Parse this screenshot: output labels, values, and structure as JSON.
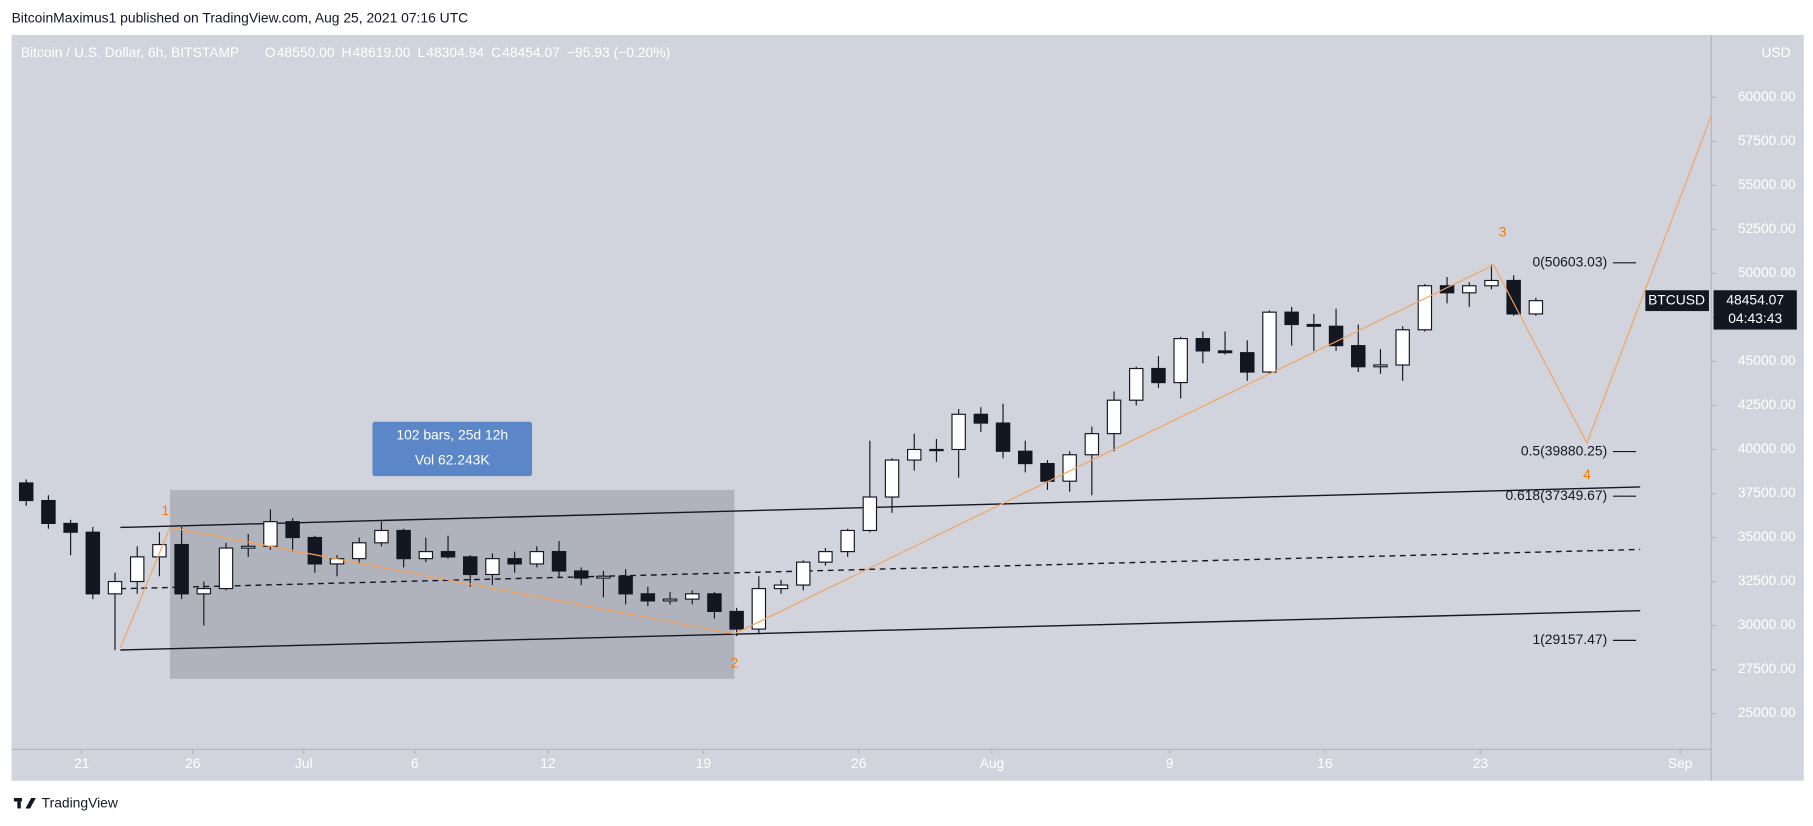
{
  "header": {
    "published": "BitcoinMaximus1 published on TradingView.com, Aug 25, 2021 07:16 UTC",
    "footer": "TradingView"
  },
  "chart_data": {
    "type": "candlestick",
    "symbol": "Bitcoin / U.S. Dollar, 6h, BITSTAMP",
    "ohlc": [
      {
        "key": "O",
        "value": "48550.00"
      },
      {
        "key": "H",
        "value": "48619.00"
      },
      {
        "key": "L",
        "value": "48304.94"
      },
      {
        "key": "C",
        "value": "48454.07"
      }
    ],
    "change": "−95.93 (−0.20%)",
    "currency": "USD",
    "ticker": "BTCUSD",
    "last_price": {
      "value": 48454.07,
      "label": "48454.07"
    },
    "countdown": "04:43:43",
    "open": [
      38100,
      37100,
      35800,
      35300,
      31800,
      32500,
      33900,
      34600,
      31800,
      32100,
      34400,
      34500,
      35900,
      35000,
      33500,
      33800,
      34700,
      35400,
      33800,
      34200,
      33900,
      32900,
      33800,
      33500,
      34200,
      33100,
      32700,
      32800,
      31800,
      31400,
      31500,
      31800,
      30800,
      29800,
      32100,
      32300,
      33600,
      34200,
      35400,
      37300,
      39400,
      40000,
      40000,
      42000,
      41500,
      39900,
      39200,
      38200,
      39700,
      40900,
      42800,
      44600,
      43800,
      46300,
      45600,
      45500,
      44400,
      47800,
      47100,
      47000,
      45900,
      44700,
      44800,
      46800,
      49300,
      48900,
      49300,
      49600,
      47700
    ],
    "high": [
      38300,
      37400,
      36000,
      35600,
      33000,
      34500,
      35300,
      35600,
      32500,
      34700,
      35200,
      36600,
      36100,
      35100,
      34000,
      35000,
      35900,
      35500,
      35000,
      35100,
      34000,
      34100,
      34200,
      34500,
      34800,
      33300,
      33100,
      33200,
      32200,
      31900,
      32000,
      31900,
      31000,
      32800,
      32600,
      33700,
      34400,
      35500,
      40500,
      39500,
      40900,
      40600,
      42300,
      42400,
      42600,
      40500,
      39400,
      39900,
      41300,
      43300,
      44700,
      45300,
      46400,
      46700,
      46700,
      46200,
      47900,
      48100,
      47700,
      48000,
      47100,
      45700,
      47000,
      49400,
      49800,
      49500,
      50500,
      49900,
      48619
    ],
    "low": [
      36800,
      35500,
      34000,
      31500,
      28600,
      31800,
      32800,
      31500,
      30000,
      32000,
      33900,
      34300,
      34200,
      33000,
      32800,
      33500,
      34500,
      33300,
      33600,
      33800,
      32200,
      32300,
      33000,
      33300,
      32700,
      32300,
      31600,
      31200,
      31100,
      31200,
      31200,
      30400,
      29400,
      29500,
      31800,
      32000,
      33400,
      33900,
      35300,
      36400,
      38800,
      39300,
      38400,
      41000,
      39500,
      38700,
      37700,
      37600,
      37400,
      39900,
      42500,
      43500,
      42900,
      44900,
      45400,
      43900,
      44300,
      45900,
      45600,
      45600,
      44400,
      44300,
      43900,
      46700,
      48300,
      48100,
      49100,
      47600,
      47600
    ],
    "close": [
      37100,
      35800,
      35300,
      31800,
      32500,
      33900,
      34600,
      31800,
      32100,
      34400,
      34500,
      35900,
      35000,
      33500,
      33800,
      34700,
      35400,
      33800,
      34200,
      33900,
      32900,
      33800,
      33500,
      34200,
      33100,
      32700,
      32800,
      31800,
      31400,
      31500,
      31800,
      30800,
      29800,
      32100,
      32300,
      33600,
      34200,
      35400,
      37300,
      39400,
      40000,
      40000,
      42000,
      41500,
      39900,
      39200,
      38200,
      39700,
      40900,
      42800,
      44600,
      43800,
      46300,
      45600,
      45500,
      44400,
      47800,
      47100,
      47000,
      45900,
      44700,
      44800,
      46800,
      49300,
      48900,
      49300,
      49600,
      47700,
      48454.07
    ],
    "xlim": [
      -0.16,
      76.4
    ],
    "xticks": [
      {
        "value": 3,
        "label": "21"
      },
      {
        "value": 8,
        "label": "26"
      },
      {
        "value": 13,
        "label": "Jul"
      },
      {
        "value": 18,
        "label": "6"
      },
      {
        "value": 24,
        "label": "12"
      },
      {
        "value": 31,
        "label": "19"
      },
      {
        "value": 38,
        "label": "26"
      },
      {
        "value": 44,
        "label": "Aug"
      },
      {
        "value": 52,
        "label": "9"
      },
      {
        "value": 59,
        "label": "16"
      },
      {
        "value": 66,
        "label": "23"
      },
      {
        "value": 75,
        "label": "Sep"
      }
    ],
    "ylim": [
      22960,
      63550
    ],
    "yticks": [
      {
        "value": 25000,
        "label": "25000.00"
      },
      {
        "value": 27500,
        "label": "27500.00"
      },
      {
        "value": 30000,
        "label": "30000.00"
      },
      {
        "value": 32500,
        "label": "32500.00"
      },
      {
        "value": 35000,
        "label": "35000.00"
      },
      {
        "value": 37500,
        "label": "37500.00"
      },
      {
        "value": 40000,
        "label": "40000.00"
      },
      {
        "value": 42500,
        "label": "42500.00"
      },
      {
        "value": 45000,
        "label": "45000.00"
      },
      {
        "value": 47500,
        "label": "47500.00"
      },
      {
        "value": 50000,
        "label": "50000.00"
      },
      {
        "value": 52500,
        "label": "52500.00"
      },
      {
        "value": 55000,
        "label": "55000.00"
      },
      {
        "value": 57500,
        "label": "57500.00"
      },
      {
        "value": 60000,
        "label": "60000.00"
      }
    ],
    "channel": [
      {
        "style": "solid",
        "x": [
          4.74,
          73.2
        ],
        "y": [
          35572,
          37870
        ]
      },
      {
        "style": "dashed",
        "x": [
          4.74,
          73.2
        ],
        "y": [
          32090,
          34322
        ]
      },
      {
        "style": "solid",
        "x": [
          4.74,
          73.2
        ],
        "y": [
          28610,
          30842
        ]
      }
    ],
    "wave_path": {
      "color": "#f7a35c",
      "x": [
        4.74,
        6.98,
        32.4,
        66.6,
        70.8,
        76.4
      ],
      "y": [
        28740,
        35572,
        29530,
        50480,
        40370,
        58950
      ]
    },
    "wave_labels": [
      {
        "text": "1",
        "x": 6.77,
        "y": 36490
      },
      {
        "text": "2",
        "x": 32.4,
        "y": 27820
      },
      {
        "text": "3",
        "x": 67,
        "y": 52310
      },
      {
        "text": "4",
        "x": 70.8,
        "y": 38520
      }
    ],
    "wave_color": "#f57c00",
    "fib_levels": [
      {
        "label": "0(50603.03)",
        "value": 50603.03
      },
      {
        "label": "0.5(39880.25)",
        "value": 39880.25
      },
      {
        "label": "0.618(37349.67)",
        "value": 37349.67
      },
      {
        "label": "1(29157.47)",
        "value": 29157.47
      }
    ],
    "range": {
      "x": [
        6.98,
        32.4
      ],
      "y": [
        26970,
        37700
      ],
      "text": [
        "102 bars, 25d 12h",
        "Vol 62.243K"
      ]
    }
  }
}
